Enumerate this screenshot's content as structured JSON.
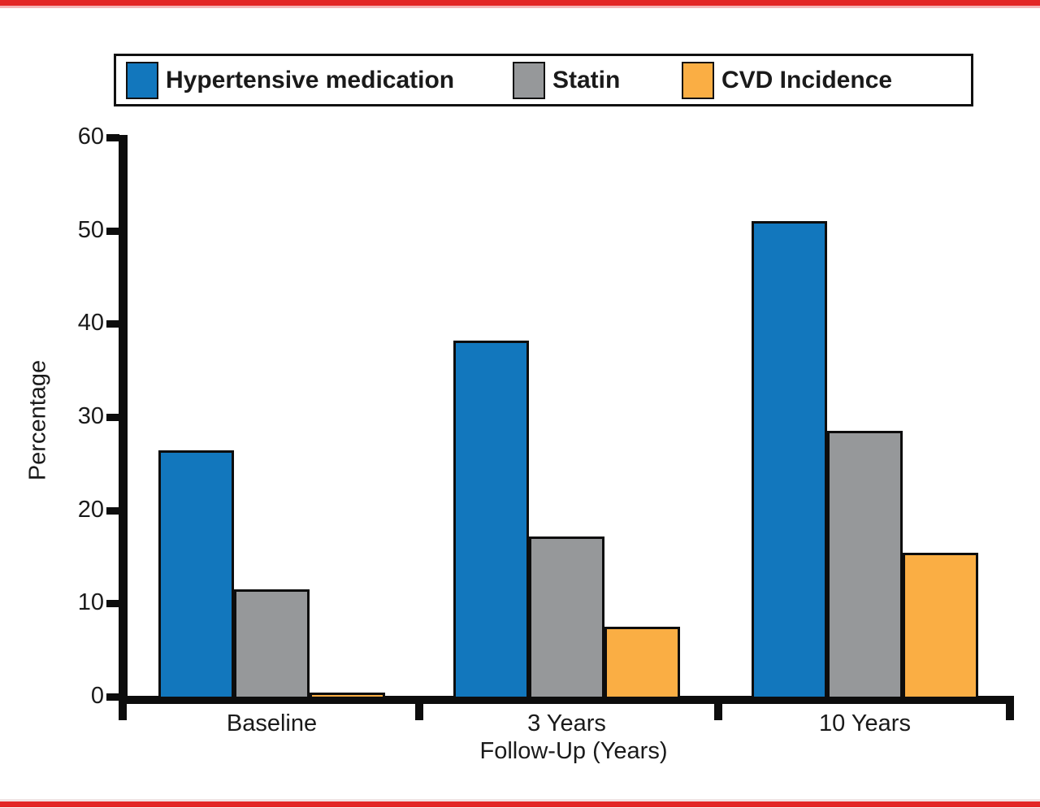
{
  "page": {
    "accent_red": "#e32726",
    "background": "#ffffff"
  },
  "chart_data": {
    "type": "bar",
    "title": "",
    "categories": [
      "Baseline",
      "3 Years",
      "10 Years"
    ],
    "series": [
      {
        "name": "Hypertensive medication",
        "color": "#1277bd",
        "values": [
          26.4,
          38.2,
          51.0
        ]
      },
      {
        "name": "Statin",
        "color": "#96989a",
        "values": [
          11.5,
          17.2,
          28.5
        ]
      },
      {
        "name": "CVD Incidence",
        "color": "#faae44",
        "values": [
          0.4,
          7.5,
          15.4
        ]
      }
    ],
    "xlabel": "Follow-Up (Years)",
    "ylabel": "Percentage",
    "ylim": [
      0,
      60
    ],
    "yticks": [
      "0",
      "10",
      "20",
      "30",
      "40",
      "50",
      "60"
    ],
    "grid": false,
    "legend_position": "top",
    "axis_color": "#0d0d0d",
    "bar_border_color": "#0d0d0d"
  }
}
